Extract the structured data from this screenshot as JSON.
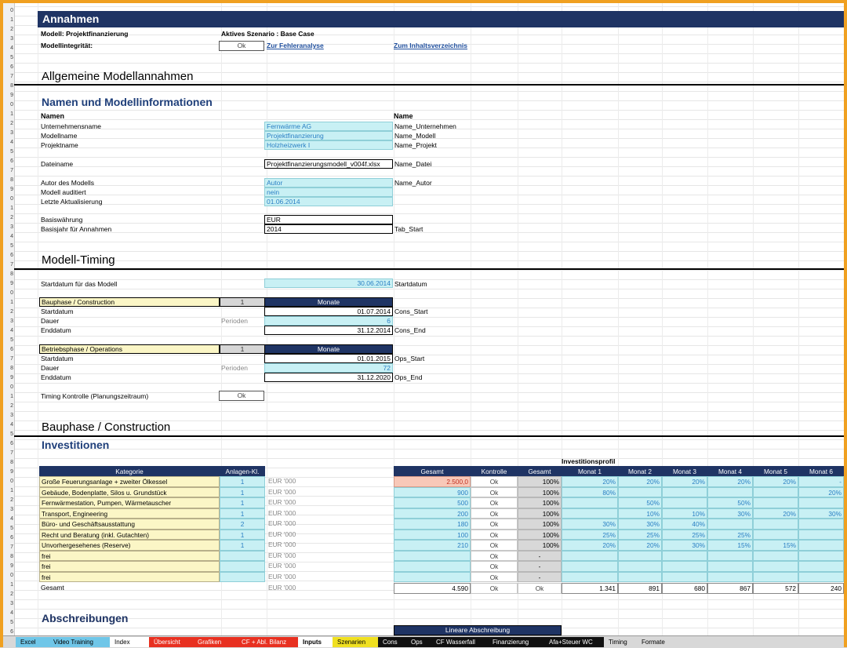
{
  "header": {
    "title": "Annahmen",
    "modell": "Modell: Projektfinanzierung",
    "szenario": "Aktives Szenario : Base Case",
    "integritaet_label": "Modellintegrität:",
    "integritaet_btn": "Ok",
    "link_fehler": "Zur Fehleranalyse",
    "link_inhalt": "Zum Inhaltsverzeichnis"
  },
  "allgemein": {
    "title": "Allgemeine Modellannahmen",
    "subtitle": "Namen und Modellinformationen",
    "col_namen": "Namen",
    "col_name": "Name",
    "rows": [
      {
        "label": "Unternehmensname",
        "value": "Fernwärme AG",
        "name": "Name_Unternehmen"
      },
      {
        "label": "Modellname",
        "value": "Projektfinanzierung",
        "name": "Name_Modell"
      },
      {
        "label": "Projektname",
        "value": "Holzheizwerk I",
        "name": "Name_Projekt"
      },
      {
        "label": "Dateiname",
        "value": "Projektfinanzierungsmodell_v004f.xlsx",
        "name": "Name_Datei"
      },
      {
        "label": "Autor des Modells",
        "value": "Autor",
        "name": "Name_Autor"
      },
      {
        "label": "Modell auditiert",
        "value": "nein",
        "name": ""
      },
      {
        "label": "Letzte Aktualisierung",
        "value": "01.06.2014",
        "name": ""
      },
      {
        "label": "Basiswährung",
        "value": "EUR",
        "name": ""
      },
      {
        "label": "Basisjahr für Annahmen",
        "value": "2014",
        "name": "Tab_Start"
      }
    ]
  },
  "timing": {
    "title": "Modell-Timing",
    "startdatum_label": "Startdatum für das Modell",
    "startdatum_value": "30.06.2014",
    "startdatum_name": "Startdatum",
    "bau": {
      "label": "Bauphase / Construction",
      "num": "1",
      "unit": "Monate",
      "start_label": "Startdatum",
      "start": "01.07.2014",
      "start_name": "Cons_Start",
      "dauer_label": "Dauer",
      "perioden": "Perioden",
      "dauer": "6",
      "end_label": "Enddatum",
      "end": "31.12.2014",
      "end_name": "Cons_End"
    },
    "betrieb": {
      "label": "Betriebsphase / Operations",
      "num": "1",
      "unit": "Monate",
      "start_label": "Startdatum",
      "start": "01.01.2015",
      "start_name": "Ops_Start",
      "dauer_label": "Dauer",
      "perioden": "Perioden",
      "dauer": "72",
      "end_label": "Enddatum",
      "end": "31.12.2020",
      "end_name": "Ops_End"
    },
    "kontrolle_label": "Timing Kontrolle (Planungszeitraum)",
    "kontrolle_btn": "Ok"
  },
  "bauphase": {
    "title": "Bauphase / Construction",
    "subtitle": "Investitionen",
    "profil_title": "Investitionsprofil",
    "headers": [
      "Kategorie",
      "Anlagen-Kl.",
      "Gesamt",
      "Kontrolle",
      "Gesamt",
      "Monat 1",
      "Monat 2",
      "Monat 3",
      "Monat 4",
      "Monat 5",
      "Monat 6"
    ],
    "rows": [
      {
        "kat": "Große Feuerungsanlage + zweiter Ölkessel",
        "kl": "1",
        "unit": "EUR '000",
        "gesamt": "2.500,0",
        "kontrolle": "Ok",
        "pct": "100%",
        "m": [
          "20%",
          "20%",
          "20%",
          "20%",
          "20%",
          "-"
        ]
      },
      {
        "kat": "Gebäude, Bodenplatte, Silos u. Grundstück",
        "kl": "1",
        "unit": "EUR '000",
        "gesamt": "900",
        "kontrolle": "Ok",
        "pct": "100%",
        "m": [
          "80%",
          "",
          "",
          "",
          "",
          "20%"
        ]
      },
      {
        "kat": "Fernwärmestation, Pumpen, Wärmetauscher",
        "kl": "1",
        "unit": "EUR '000",
        "gesamt": "500",
        "kontrolle": "Ok",
        "pct": "100%",
        "m": [
          "",
          "50%",
          "",
          "50%",
          "",
          ""
        ]
      },
      {
        "kat": "Transport, Engineering",
        "kl": "1",
        "unit": "EUR '000",
        "gesamt": "200",
        "kontrolle": "Ok",
        "pct": "100%",
        "m": [
          "",
          "10%",
          "10%",
          "30%",
          "20%",
          "30%"
        ]
      },
      {
        "kat": "Büro- und Geschäftsausstattung",
        "kl": "2",
        "unit": "EUR '000",
        "gesamt": "180",
        "kontrolle": "Ok",
        "pct": "100%",
        "m": [
          "30%",
          "30%",
          "40%",
          "",
          "",
          ""
        ]
      },
      {
        "kat": "Recht und Beratung (inkl. Gutachten)",
        "kl": "1",
        "unit": "EUR '000",
        "gesamt": "100",
        "kontrolle": "Ok",
        "pct": "100%",
        "m": [
          "25%",
          "25%",
          "25%",
          "25%",
          "",
          ""
        ]
      },
      {
        "kat": "Unvorhergesehenes (Reserve)",
        "kl": "1",
        "unit": "EUR '000",
        "gesamt": "210",
        "kontrolle": "Ok",
        "pct": "100%",
        "m": [
          "20%",
          "20%",
          "30%",
          "15%",
          "15%",
          ""
        ]
      },
      {
        "kat": "frei",
        "kl": "",
        "unit": "EUR '000",
        "gesamt": "",
        "kontrolle": "Ok",
        "pct": "-",
        "m": [
          "",
          "",
          "",
          "",
          "",
          ""
        ]
      },
      {
        "kat": "frei",
        "kl": "",
        "unit": "EUR '000",
        "gesamt": "",
        "kontrolle": "Ok",
        "pct": "-",
        "m": [
          "",
          "",
          "",
          "",
          "",
          ""
        ]
      },
      {
        "kat": "frei",
        "kl": "",
        "unit": "EUR '000",
        "gesamt": "",
        "kontrolle": "Ok",
        "pct": "-",
        "m": [
          "",
          "",
          "",
          "",
          "",
          ""
        ]
      }
    ],
    "total": {
      "label": "Gesamt",
      "unit": "EUR '000",
      "gesamt": "4.590",
      "kontrolle": "Ok",
      "pct": "Ok",
      "m": [
        "1.341",
        "891",
        "680",
        "867",
        "572",
        "240"
      ]
    }
  },
  "abschreibungen": {
    "title": "Abschreibungen",
    "lineare": "Lineare Abschreibung"
  },
  "tabs": [
    {
      "label": "Excel",
      "color": "#6fc6e8"
    },
    {
      "label": "Video Training",
      "color": "#6fc6e8"
    },
    {
      "label": "Index",
      "color": "#ffffff"
    },
    {
      "label": "Übersicht",
      "color": "#e83020"
    },
    {
      "label": "Grafiken",
      "color": "#e83020"
    },
    {
      "label": "CF + Abl. Bilanz",
      "color": "#e83020"
    },
    {
      "label": "Inputs",
      "color": "#ffffff"
    },
    {
      "label": "Szenarien",
      "color": "#f0e020"
    },
    {
      "label": "Cons",
      "color": "#111111"
    },
    {
      "label": "Ops",
      "color": "#111111"
    },
    {
      "label": "CF Wasserfall",
      "color": "#111111"
    },
    {
      "label": "Finanzierung",
      "color": "#111111"
    },
    {
      "label": "Afa+Steuer WC",
      "color": "#111111"
    },
    {
      "label": "Timing",
      "color": "#d8d8d8"
    },
    {
      "label": "Formate",
      "color": "#d8d8d8"
    }
  ],
  "colors": {
    "navy": "#1f3464",
    "input_blue": "#c8f0f4",
    "input_text": "#2a7fc4",
    "yellow": "#fbf6c6",
    "frame": "#f0a020"
  }
}
